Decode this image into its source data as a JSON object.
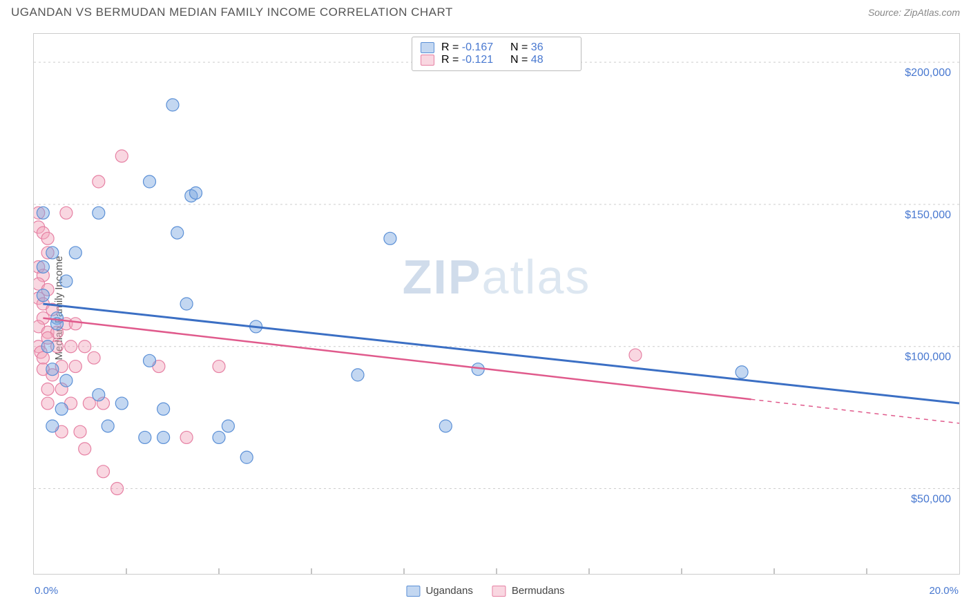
{
  "header": {
    "title": "UGANDAN VS BERMUDAN MEDIAN FAMILY INCOME CORRELATION CHART",
    "source": "Source: ZipAtlas.com"
  },
  "watermark": {
    "zip": "ZIP",
    "atlas": "atlas"
  },
  "y_axis": {
    "label": "Median Family Income"
  },
  "x_axis": {
    "min_label": "0.0%",
    "max_label": "20.0%"
  },
  "bottom_legend": {
    "series1": "Ugandans",
    "series2": "Bermudans"
  },
  "top_legend": {
    "r_label": "R =",
    "n_label": "N =",
    "row1_r": "-0.167",
    "row1_n": "36",
    "row2_r": "-0.121",
    "row2_n": "48"
  },
  "chart": {
    "type": "scatter_with_trend",
    "xlim": [
      0,
      20
    ],
    "ylim": [
      20000,
      210000
    ],
    "y_gridlines": [
      50000,
      100000,
      150000,
      200000
    ],
    "y_tick_labels": [
      "$50,000",
      "$100,000",
      "$150,000",
      "$200,000"
    ],
    "x_ticks": [
      2,
      4,
      6,
      8,
      10,
      12,
      14,
      16,
      18
    ],
    "background_color": "#ffffff",
    "grid_color": "#cccccc",
    "tick_label_color": "#4878d0",
    "tick_label_fontsize": 16,
    "marker_radius": 9,
    "marker_opacity": 0.55,
    "series": [
      {
        "name": "Ugandans",
        "color": "#7ba7e0",
        "fill": "rgba(123,167,224,0.45)",
        "stroke": "#5a8fd6",
        "trend": {
          "x1": 0.2,
          "y1": 115000,
          "x2": 20,
          "y2": 80000,
          "dash_from_x": null,
          "stroke_width": 3,
          "color": "#3b6fc4"
        },
        "points": [
          [
            3.0,
            185000
          ],
          [
            0.2,
            147000
          ],
          [
            1.4,
            147000
          ],
          [
            0.4,
            133000
          ],
          [
            0.2,
            128000
          ],
          [
            2.5,
            158000
          ],
          [
            3.4,
            153000
          ],
          [
            3.5,
            154000
          ],
          [
            0.9,
            133000
          ],
          [
            0.7,
            123000
          ],
          [
            0.2,
            118000
          ],
          [
            3.1,
            140000
          ],
          [
            7.7,
            138000
          ],
          [
            3.3,
            115000
          ],
          [
            0.5,
            110000
          ],
          [
            0.5,
            108000
          ],
          [
            4.8,
            107000
          ],
          [
            0.3,
            100000
          ],
          [
            2.5,
            95000
          ],
          [
            7.0,
            90000
          ],
          [
            9.6,
            92000
          ],
          [
            15.3,
            91000
          ],
          [
            0.4,
            92000
          ],
          [
            0.7,
            88000
          ],
          [
            1.4,
            83000
          ],
          [
            1.9,
            80000
          ],
          [
            2.8,
            78000
          ],
          [
            4.2,
            72000
          ],
          [
            8.9,
            72000
          ],
          [
            0.6,
            78000
          ],
          [
            2.4,
            68000
          ],
          [
            2.8,
            68000
          ],
          [
            4.0,
            68000
          ],
          [
            4.6,
            61000
          ],
          [
            1.6,
            72000
          ],
          [
            0.4,
            72000
          ]
        ]
      },
      {
        "name": "Bermudans",
        "color": "#f2a6bd",
        "fill": "rgba(242,166,189,0.45)",
        "stroke": "#e680a3",
        "trend": {
          "x1": 0.2,
          "y1": 110000,
          "x2": 20,
          "y2": 73000,
          "dash_from_x": 15.5,
          "stroke_width": 2.5,
          "color": "#e05a8c"
        },
        "points": [
          [
            1.9,
            167000
          ],
          [
            1.4,
            158000
          ],
          [
            0.1,
            147000
          ],
          [
            0.7,
            147000
          ],
          [
            0.1,
            142000
          ],
          [
            0.2,
            140000
          ],
          [
            0.3,
            138000
          ],
          [
            0.3,
            133000
          ],
          [
            0.1,
            128000
          ],
          [
            0.2,
            125000
          ],
          [
            0.1,
            122000
          ],
          [
            0.3,
            120000
          ],
          [
            0.1,
            117000
          ],
          [
            0.2,
            115000
          ],
          [
            0.4,
            113000
          ],
          [
            0.2,
            110000
          ],
          [
            0.1,
            107000
          ],
          [
            0.3,
            105000
          ],
          [
            0.5,
            105000
          ],
          [
            0.7,
            108000
          ],
          [
            0.9,
            108000
          ],
          [
            0.1,
            100000
          ],
          [
            0.15,
            98000
          ],
          [
            0.2,
            96000
          ],
          [
            0.3,
            103000
          ],
          [
            0.5,
            100000
          ],
          [
            0.8,
            100000
          ],
          [
            1.1,
            100000
          ],
          [
            1.3,
            96000
          ],
          [
            0.2,
            92000
          ],
          [
            0.4,
            90000
          ],
          [
            0.6,
            93000
          ],
          [
            0.9,
            93000
          ],
          [
            2.7,
            93000
          ],
          [
            4.0,
            93000
          ],
          [
            13.0,
            97000
          ],
          [
            0.3,
            85000
          ],
          [
            0.6,
            85000
          ],
          [
            0.3,
            80000
          ],
          [
            0.8,
            80000
          ],
          [
            1.2,
            80000
          ],
          [
            1.5,
            80000
          ],
          [
            0.6,
            70000
          ],
          [
            1.0,
            70000
          ],
          [
            3.3,
            68000
          ],
          [
            1.5,
            56000
          ],
          [
            1.1,
            64000
          ],
          [
            1.8,
            50000
          ]
        ]
      }
    ]
  }
}
